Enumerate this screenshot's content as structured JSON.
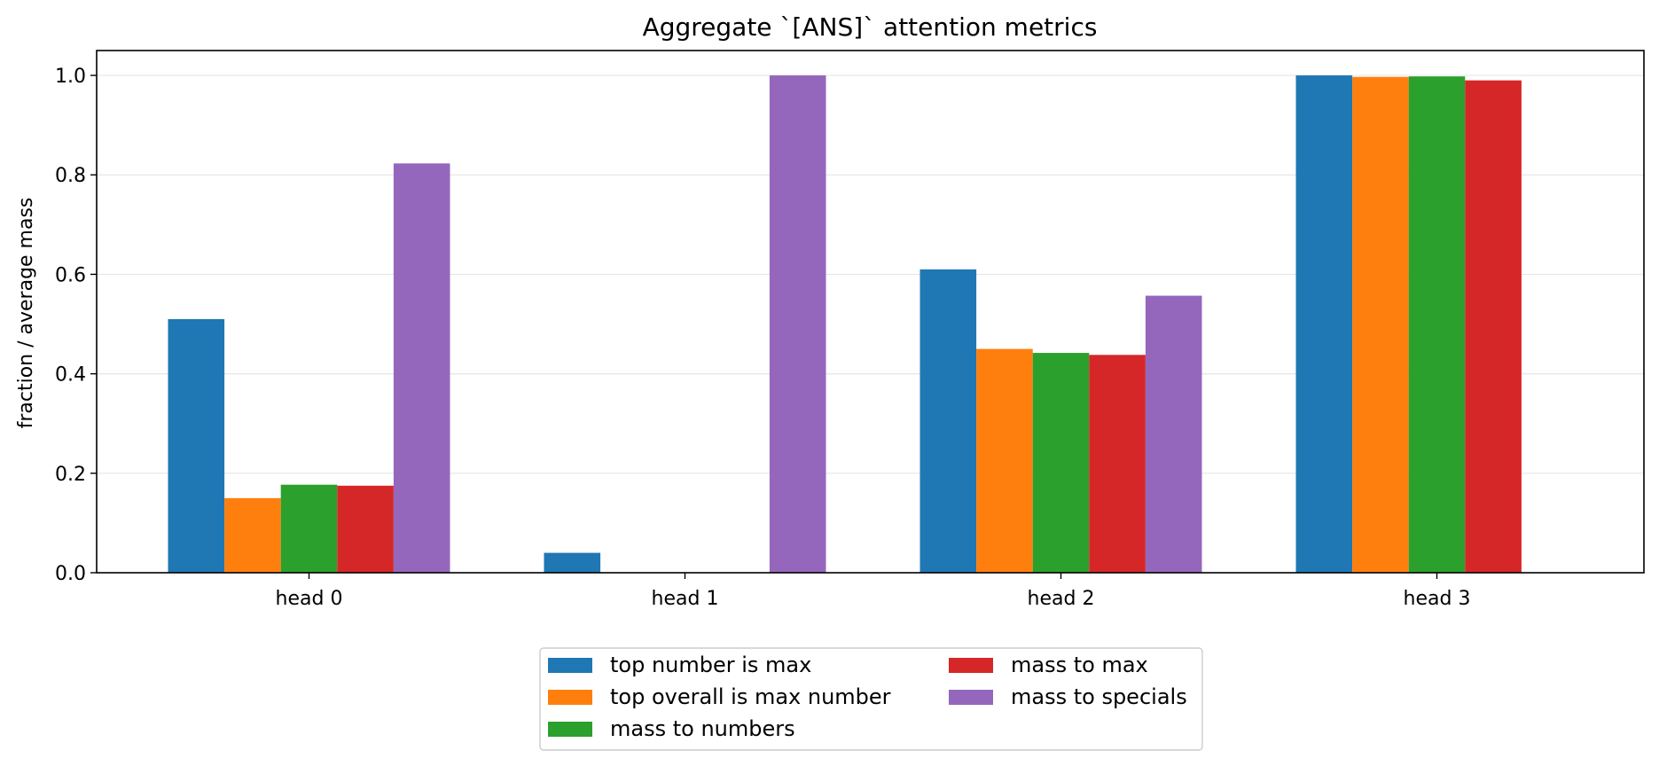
{
  "chart_data": {
    "type": "bar",
    "title": "Aggregate `[ANS]` attention metrics",
    "xlabel": "",
    "ylabel": "fraction / average mass",
    "categories": [
      "head 0",
      "head 1",
      "head 2",
      "head 3"
    ],
    "ylim": [
      0,
      1.05
    ],
    "yticks": [
      "0.0",
      "0.2",
      "0.4",
      "0.6",
      "0.8",
      "1.0"
    ],
    "grid": "horizontal",
    "legend_position": "bottom-center",
    "series": [
      {
        "name": "top number is max",
        "color": "#1f77b4",
        "values": [
          0.51,
          0.04,
          0.61,
          1.0
        ]
      },
      {
        "name": "top overall is max number",
        "color": "#ff7f0e",
        "values": [
          0.15,
          0.0,
          0.45,
          0.997
        ]
      },
      {
        "name": "mass to numbers",
        "color": "#2ca02c",
        "values": [
          0.177,
          0.0,
          0.442,
          0.998
        ]
      },
      {
        "name": "mass to max",
        "color": "#d62728",
        "values": [
          0.175,
          0.0,
          0.438,
          0.99
        ]
      },
      {
        "name": "mass to specials",
        "color": "#9467bd",
        "values": [
          0.823,
          1.0,
          0.557,
          0.0
        ]
      }
    ]
  }
}
